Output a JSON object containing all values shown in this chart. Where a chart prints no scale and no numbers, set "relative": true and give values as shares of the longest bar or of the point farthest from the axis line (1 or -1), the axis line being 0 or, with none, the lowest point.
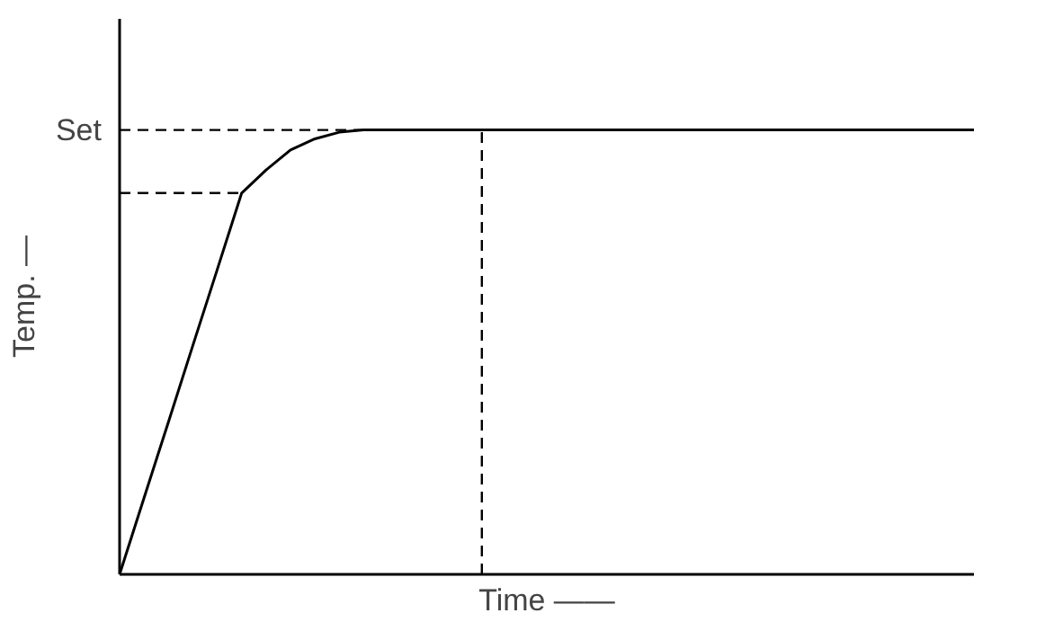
{
  "chart_data": {
    "type": "line",
    "relative": true,
    "xlabel": "Time ——",
    "ylabel": "Temp. —",
    "marker": "none",
    "categories": [
      null,
      null,
      null,
      null,
      null,
      null,
      null,
      null,
      null,
      null,
      null,
      null,
      null,
      null,
      null,
      null,
      null,
      null,
      null,
      null,
      null,
      null,
      null,
      null,
      null,
      null,
      null,
      null,
      null,
      null,
      null,
      null,
      null,
      null,
      null,
      null
    ],
    "series": [
      {
        "color": "#000000",
        "line_style": "solid",
        "values": [
          0,
          0.172,
          0.343,
          0.515,
          0.686,
          0.858,
          0.91,
          0.955,
          0.98,
          0.995,
          1,
          1,
          1,
          1,
          1,
          1,
          1,
          1,
          1,
          1,
          1,
          1,
          1,
          1,
          1,
          1,
          1,
          1,
          1,
          1,
          1,
          1,
          1,
          1,
          1,
          1
        ]
      },
      {
        "color": "#000000",
        "line_style": "dashed",
        "values": [
          0.858,
          0.858,
          0.858,
          0.858,
          0.858,
          0.858,
          null,
          null,
          null,
          null,
          null,
          null,
          null,
          null,
          null,
          null,
          null,
          null,
          null,
          null,
          null,
          null,
          null,
          null,
          null,
          null,
          null,
          null,
          null,
          null,
          null,
          null,
          null,
          null,
          null,
          null
        ]
      }
    ],
    "ref_lines": [
      {
        "axis": "y",
        "value": 1,
        "label": "Set",
        "color": "#000000",
        "line_style": "dashed"
      }
    ]
  }
}
